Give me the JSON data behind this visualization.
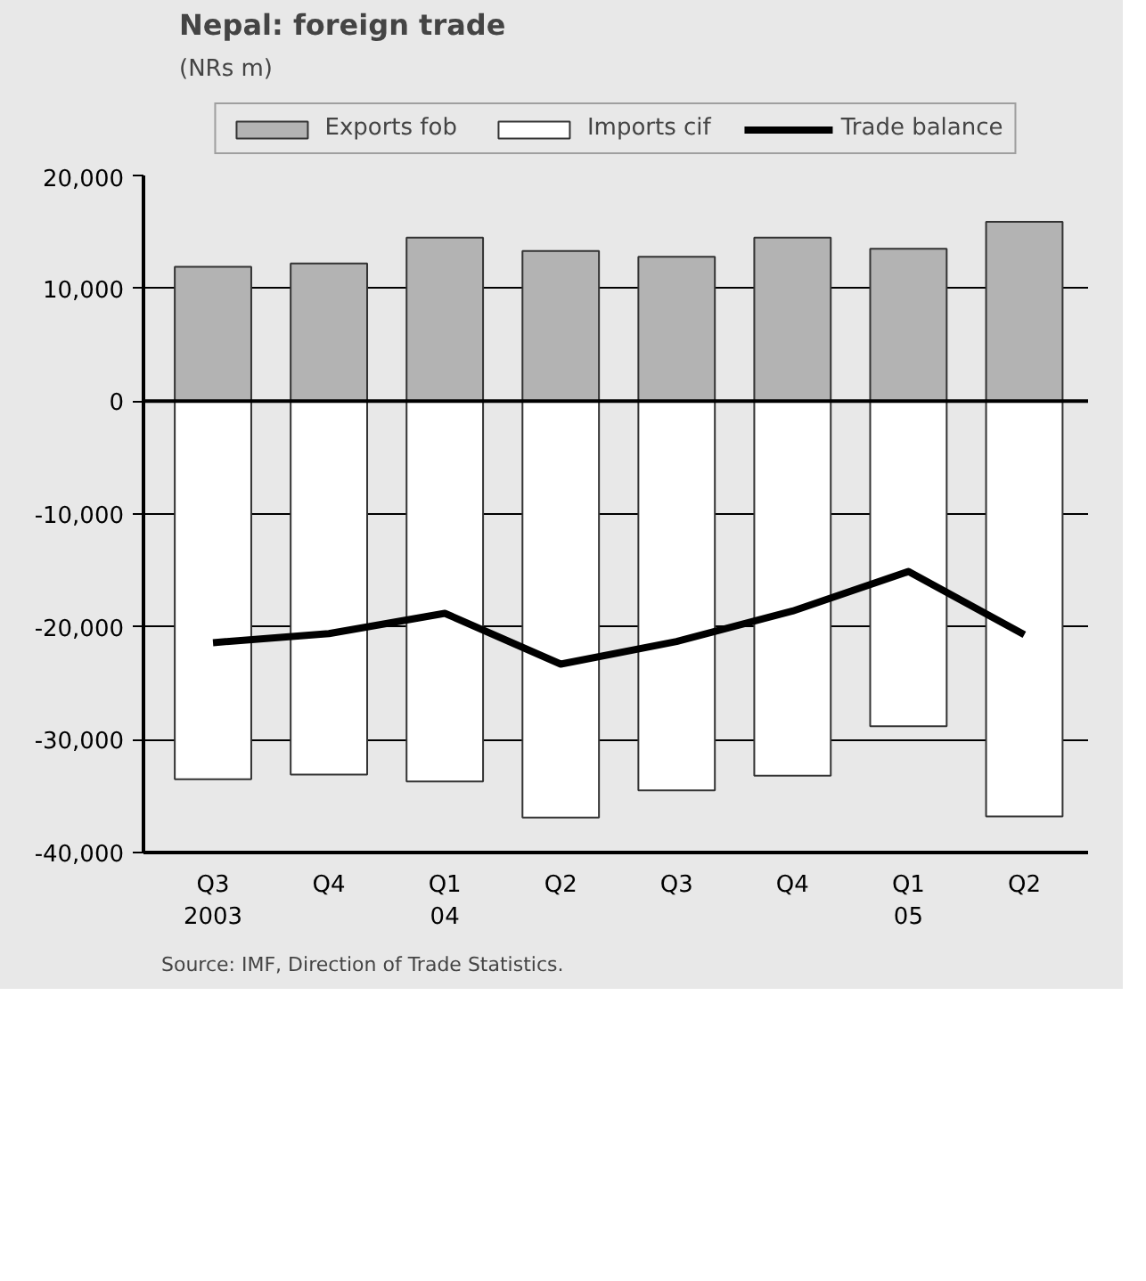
{
  "chart_data": {
    "type": "bar",
    "title": "Nepal: foreign trade",
    "subtitle": "(NRs m)",
    "categories": [
      "Q3\n2003",
      "Q4",
      "Q1\n04",
      "Q2",
      "Q3",
      "Q4",
      "Q1\n05",
      "Q2"
    ],
    "series": [
      {
        "name": "Exports fob",
        "color": "#b3b3b3",
        "values": [
          11900,
          12200,
          14500,
          13300,
          12800,
          14500,
          13500,
          15900
        ]
      },
      {
        "name": "Imports cif",
        "color": "#ffffff",
        "values": [
          -33500,
          -33100,
          -33700,
          -36900,
          -34500,
          -33200,
          -28800,
          -36800
        ]
      },
      {
        "name": "Trade balance",
        "type": "line",
        "color": "#000000",
        "values": [
          -21400,
          -20600,
          -18800,
          -23300,
          -21300,
          -18600,
          -15100,
          -20700
        ]
      }
    ],
    "ylim": [
      -40000,
      20000
    ],
    "yticks": [
      {
        "value": -40000,
        "label": "-40,000"
      },
      {
        "value": -30000,
        "label": "-30,000"
      },
      {
        "value": -20000,
        "label": "-20,000"
      },
      {
        "value": -10000,
        "label": "-10,000"
      },
      0,
      {
        "value": 10000,
        "label": "10,000"
      },
      {
        "value": 20000,
        "label": "20,000"
      }
    ],
    "ref_lines": [
      {
        "axis": "y",
        "value": 0,
        "color": "#000000"
      }
    ],
    "grid": "y",
    "legend": "top",
    "stacked": true,
    "annotations": [
      "Source: IMF, Direction of Trade Statistics."
    ]
  }
}
